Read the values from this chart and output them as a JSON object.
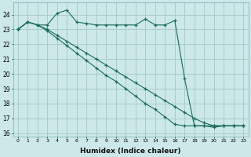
{
  "xlabel": "Humidex (Indice chaleur)",
  "bg_color": "#cce8e8",
  "grid_color": "#aacccc",
  "line_color": "#1a6b5a",
  "xlim": [
    -0.5,
    23.5
  ],
  "ylim": [
    15.8,
    24.8
  ],
  "yticks": [
    16,
    17,
    18,
    19,
    20,
    21,
    22,
    23,
    24
  ],
  "xticks": [
    0,
    1,
    2,
    3,
    4,
    5,
    6,
    7,
    8,
    9,
    10,
    11,
    12,
    13,
    14,
    15,
    16,
    17,
    18,
    19,
    20,
    21,
    22,
    23
  ],
  "series1_x": [
    0,
    1,
    2,
    3,
    4,
    5,
    6,
    7,
    8,
    9,
    10,
    11,
    12,
    13,
    14,
    15,
    16,
    17,
    18,
    19,
    20,
    21,
    22,
    23
  ],
  "series1_y": [
    23.0,
    23.5,
    23.3,
    23.3,
    24.1,
    24.3,
    23.5,
    23.4,
    23.3,
    23.3,
    23.3,
    23.3,
    23.3,
    23.7,
    23.3,
    23.3,
    23.6,
    19.7,
    16.5,
    16.5,
    16.4,
    16.5,
    16.5,
    16.5
  ],
  "series2_x": [
    0,
    1,
    2,
    3,
    4,
    5,
    6,
    7,
    8,
    9,
    10,
    11,
    12,
    13,
    14,
    15,
    16,
    17,
    18,
    19,
    20,
    21,
    22,
    23
  ],
  "series2_y": [
    23.0,
    23.5,
    23.3,
    22.9,
    22.4,
    21.9,
    21.4,
    20.9,
    20.4,
    19.9,
    19.5,
    19.0,
    18.5,
    18.0,
    17.6,
    17.1,
    16.6,
    16.5,
    16.5,
    16.5,
    16.5,
    16.5,
    16.5,
    16.5
  ],
  "series3_x": [
    0,
    1,
    2,
    3,
    4,
    5,
    6,
    7,
    8,
    9,
    10,
    11,
    12,
    13,
    14,
    15,
    16,
    17,
    18,
    19,
    20,
    21,
    22,
    23
  ],
  "series3_y": [
    23.0,
    23.5,
    23.3,
    23.0,
    22.6,
    22.2,
    21.8,
    21.4,
    21.0,
    20.6,
    20.2,
    19.8,
    19.4,
    19.0,
    18.6,
    18.2,
    17.8,
    17.4,
    17.0,
    16.7,
    16.5,
    16.5,
    16.5,
    16.5
  ]
}
